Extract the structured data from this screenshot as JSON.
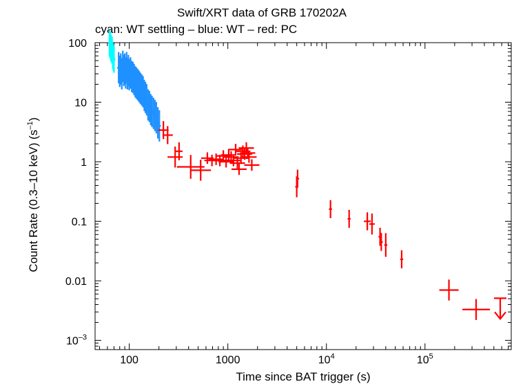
{
  "chart_data": {
    "type": "scatter",
    "title": "Swift/XRT data of GRB 170202A",
    "subtitle": "cyan: WT settling – blue: WT – red: PC",
    "xlabel": "Time since BAT trigger (s)",
    "ylabel_main": "Count Rate (0.3–10 keV) (s",
    "ylabel_sup": "–1",
    "ylabel_tail": ")",
    "xscale": "log",
    "yscale": "log",
    "xlim": [
      45,
      750000
    ],
    "ylim": [
      0.0007,
      100
    ],
    "grid": false,
    "x_ticks": [
      {
        "value": 100,
        "base": "100",
        "sup": ""
      },
      {
        "value": 1000,
        "base": "1000",
        "sup": ""
      },
      {
        "value": 10000,
        "base": "10",
        "sup": "4"
      },
      {
        "value": 100000,
        "base": "10",
        "sup": "5"
      }
    ],
    "y_ticks": [
      {
        "value": 100,
        "base": "100",
        "sup": ""
      },
      {
        "value": 10,
        "base": "10",
        "sup": ""
      },
      {
        "value": 1,
        "base": "1",
        "sup": ""
      },
      {
        "value": 0.1,
        "base": "0.1",
        "sup": ""
      },
      {
        "value": 0.01,
        "base": "0.01",
        "sup": ""
      },
      {
        "value": 0.001,
        "base": "10",
        "sup": "–3"
      }
    ],
    "colors": {
      "wt_settling": "#00ffff",
      "wt": "#1e90ff",
      "pc": "#ff0000"
    },
    "series": [
      {
        "key": "wt_settling",
        "color": "#00ffff",
        "points": [
          [
            63,
            98,
            8,
            0,
            12
          ],
          [
            64,
            90,
            8,
            0,
            12
          ],
          [
            65,
            82,
            8,
            0,
            12
          ],
          [
            66,
            78,
            8,
            0,
            12
          ],
          [
            67,
            74,
            8,
            0,
            12
          ],
          [
            68,
            60,
            8,
            0,
            12
          ],
          [
            69,
            56,
            8,
            0,
            12
          ],
          [
            70,
            52,
            8,
            0,
            12
          ]
        ]
      },
      {
        "key": "wt",
        "color": "#1e90ff",
        "points": [
          [
            78,
            38,
            10,
            0,
            0
          ],
          [
            80,
            33,
            10,
            0,
            0
          ],
          [
            82,
            36,
            10,
            0,
            0
          ],
          [
            84,
            30,
            10,
            0,
            0
          ],
          [
            86,
            40,
            10,
            0,
            0
          ],
          [
            88,
            34,
            10,
            0,
            0
          ],
          [
            90,
            36,
            10,
            0,
            0
          ],
          [
            92,
            31,
            10,
            0,
            0
          ],
          [
            94,
            38,
            10,
            0,
            0
          ],
          [
            96,
            30,
            10,
            0,
            0
          ],
          [
            98,
            34,
            10,
            0,
            0
          ],
          [
            100,
            29,
            10,
            0,
            0
          ],
          [
            103,
            31,
            10,
            0,
            0
          ],
          [
            106,
            27,
            10,
            0,
            0
          ],
          [
            109,
            26,
            10,
            0,
            0
          ],
          [
            112,
            24,
            10,
            0,
            0
          ],
          [
            115,
            22,
            10,
            0,
            0
          ],
          [
            118,
            21,
            10,
            0,
            0
          ],
          [
            121,
            20,
            10,
            0,
            0
          ],
          [
            124,
            19,
            10,
            0,
            0
          ],
          [
            127,
            18,
            10,
            0,
            0
          ],
          [
            130,
            17,
            10,
            0,
            0
          ],
          [
            134,
            16,
            10,
            0,
            0
          ],
          [
            138,
            15,
            10,
            0,
            0
          ],
          [
            142,
            13,
            10,
            0,
            0
          ],
          [
            146,
            12,
            10,
            0,
            0
          ],
          [
            150,
            11,
            10,
            0,
            0
          ],
          [
            155,
            9,
            10,
            0,
            0
          ],
          [
            160,
            8.5,
            10,
            0,
            0
          ],
          [
            165,
            7.5,
            10,
            0,
            0
          ],
          [
            170,
            7,
            10,
            0,
            0
          ],
          [
            176,
            6.5,
            10,
            0,
            0
          ],
          [
            182,
            6,
            10,
            0,
            0
          ],
          [
            188,
            5.5,
            10,
            0,
            0
          ],
          [
            195,
            4.5,
            10,
            0,
            0
          ],
          [
            202,
            4,
            10,
            0,
            0
          ]
        ]
      },
      {
        "key": "pc",
        "color": "#ff0000",
        "points": [
          [
            222,
            3.4,
            5,
            15,
            0
          ],
          [
            245,
            2.8,
            5,
            15,
            0
          ],
          [
            292,
            1.2,
            6,
            22,
            0
          ],
          [
            320,
            1.5,
            5,
            10,
            0
          ],
          [
            420,
            0.82,
            7,
            40,
            0
          ],
          [
            530,
            0.72,
            6,
            30,
            0
          ],
          [
            620,
            1.15,
            3,
            18,
            0
          ],
          [
            690,
            1.05,
            3,
            22,
            0
          ],
          [
            760,
            1.1,
            3,
            22,
            0
          ],
          [
            830,
            1.05,
            3,
            22,
            0
          ],
          [
            900,
            1.25,
            3,
            22,
            0
          ],
          [
            960,
            1.0,
            3,
            22,
            0
          ],
          [
            1020,
            1.3,
            3,
            22,
            0
          ],
          [
            1080,
            1.2,
            3,
            22,
            0
          ],
          [
            1140,
            1.05,
            3,
            22,
            0
          ],
          [
            1200,
            1.6,
            3,
            22,
            0
          ],
          [
            1250,
            0.95,
            3,
            22,
            0
          ],
          [
            1300,
            0.75,
            3,
            22,
            0
          ],
          [
            1360,
            1.15,
            3,
            22,
            0
          ],
          [
            1420,
            1.5,
            3,
            22,
            0
          ],
          [
            1480,
            1.35,
            3,
            22,
            0
          ],
          [
            1540,
            1.7,
            3,
            22,
            0
          ],
          [
            1590,
            1.4,
            3,
            22,
            0
          ],
          [
            1640,
            1.2,
            3,
            22,
            0
          ],
          [
            1750,
            0.88,
            3,
            22,
            0
          ],
          [
            5000,
            0.38,
            6,
            0,
            0
          ],
          [
            5100,
            0.52,
            5,
            0,
            0
          ],
          [
            11000,
            0.16,
            5,
            0,
            0
          ],
          [
            17000,
            0.11,
            5,
            0,
            0
          ],
          [
            26000,
            0.1,
            5,
            10,
            0
          ],
          [
            29000,
            0.09,
            6,
            8,
            0
          ],
          [
            35000,
            0.055,
            5,
            0,
            0
          ],
          [
            36000,
            0.045,
            5,
            0,
            0
          ],
          [
            40000,
            0.04,
            7,
            0,
            0
          ],
          [
            58000,
            0.023,
            5,
            0,
            0
          ],
          [
            175000,
            0.007,
            6,
            28,
            0
          ],
          [
            330000,
            0.0033,
            6,
            40,
            0
          ]
        ]
      }
    ],
    "upper_limits": [
      {
        "x": 580000,
        "y": 0.0051,
        "color": "#ff0000"
      }
    ]
  }
}
